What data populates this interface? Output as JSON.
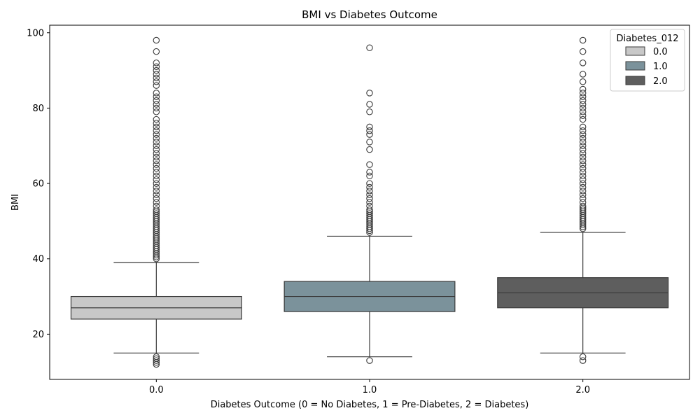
{
  "chart_data": {
    "type": "box",
    "title": "BMI vs Diabetes Outcome",
    "xlabel": "Diabetes Outcome (0 = No Diabetes, 1 = Pre-Diabetes, 2 = Diabetes)",
    "ylabel": "BMI",
    "ylim": [
      8,
      102
    ],
    "yticks": [
      20,
      40,
      60,
      80,
      100
    ],
    "categories": [
      "0.0",
      "1.0",
      "2.0"
    ],
    "legend": {
      "title": "Diabetes_012",
      "placement": "top-right",
      "entries": [
        "0.0",
        "1.0",
        "2.0"
      ]
    },
    "colors": [
      "#c8c8c8",
      "#7b929b",
      "#5e5e5e"
    ],
    "edge_color": "#3a3a3a",
    "series": [
      {
        "name": "0.0",
        "whisker_low": 15,
        "q1": 24,
        "median": 27,
        "q3": 30,
        "whisker_high": 39,
        "outliers": [
          12,
          12.5,
          13,
          13.5,
          14,
          40,
          40.5,
          41,
          41.5,
          42,
          42.5,
          43,
          43.5,
          44,
          44.5,
          45,
          45.5,
          46,
          46.5,
          47,
          47.5,
          48,
          48.5,
          49,
          49.5,
          50,
          50.5,
          51,
          51.5,
          52,
          52.5,
          53,
          54,
          55,
          56,
          57,
          58,
          59,
          60,
          61,
          62,
          63,
          64,
          65,
          66,
          67,
          68,
          69,
          70,
          71,
          72,
          73,
          74,
          75,
          76,
          77,
          79,
          80,
          81,
          82,
          83,
          84,
          86,
          87,
          88,
          89,
          90,
          91,
          92,
          95,
          98
        ]
      },
      {
        "name": "1.0",
        "whisker_low": 14,
        "q1": 26,
        "median": 30,
        "q3": 34,
        "whisker_high": 46,
        "outliers": [
          13,
          47,
          47.5,
          48,
          48.5,
          49,
          49.5,
          50,
          50.5,
          51,
          51.5,
          52,
          52.5,
          53,
          54,
          55,
          56,
          57,
          58,
          59,
          60,
          62,
          63,
          65,
          69,
          71,
          73,
          74,
          75,
          79,
          81,
          84,
          96
        ]
      },
      {
        "name": "2.0",
        "whisker_low": 15,
        "q1": 27,
        "median": 31,
        "q3": 35,
        "whisker_high": 47,
        "outliers": [
          13,
          14,
          48,
          48.5,
          49,
          49.5,
          50,
          50.5,
          51,
          51.5,
          52,
          52.5,
          53,
          53.5,
          54,
          55,
          56,
          57,
          58,
          59,
          60,
          61,
          62,
          63,
          64,
          65,
          66,
          67,
          68,
          69,
          70,
          71,
          72,
          73,
          74,
          75,
          77,
          78,
          79,
          80,
          81,
          82,
          83,
          84,
          85,
          87,
          89,
          92,
          95,
          98
        ]
      }
    ]
  }
}
